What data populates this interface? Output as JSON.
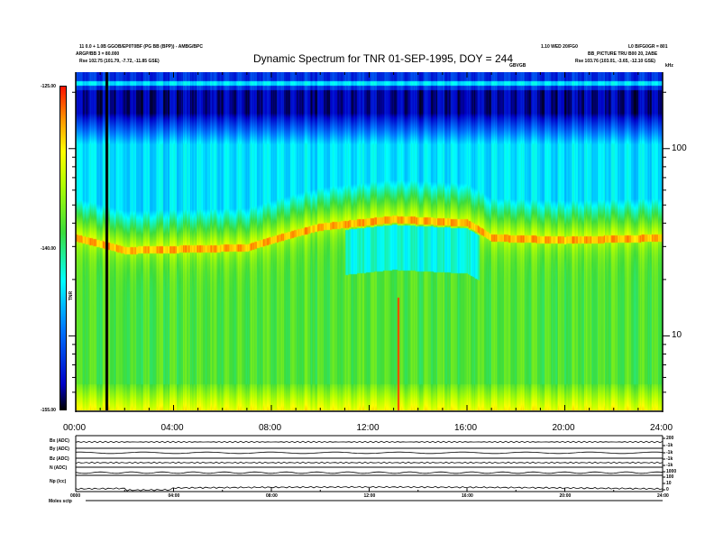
{
  "header": {
    "info_line1": "11 0.0 + 1.0B GGOB/EP0T0BF (PG BB (BPP)) - AMBG/BPC",
    "info_line2": "ARGP/BB 3 = 80.000",
    "pos_left": "Rse    102.75 (101.79, -7.72, -11.85 GSE)",
    "info_right1": "1.10 WED 20/FG0",
    "info_right2": "L0 B/FG0GR = 801",
    "info_right3": "BB_PICTURE  TRU B00 20, 2ABE",
    "pos_right": "Rse    103.76 (103.01, -3.65, -12.10 GSE)",
    "marker_label": "GBVGB",
    "unit_label": "kHz"
  },
  "chart_data": {
    "type": "heatmap",
    "title": "Dynamic Spectrum for TNR 01-SEP-1995, DOY = 244",
    "xlabel": "",
    "ylabel": "kHz",
    "x_ticks": [
      "00:00",
      "04:00",
      "08:00",
      "12:00",
      "16:00",
      "20:00",
      "24:00"
    ],
    "xlim_hours": [
      0,
      24
    ],
    "y_scale": "log",
    "ylim_khz": [
      4,
      256
    ],
    "y_ticks": [
      "100",
      "10"
    ],
    "colorbar": {
      "label": "TNR",
      "ticks": [
        "-125.00",
        "-140.00",
        "-155.00"
      ],
      "range": [
        -155,
        -125
      ]
    },
    "plasma_line_khz": [
      {
        "hour": 0,
        "khz": 35
      },
      {
        "hour": 2,
        "khz": 30
      },
      {
        "hour": 7,
        "khz": 31
      },
      {
        "hour": 10,
        "khz": 40
      },
      {
        "hour": 13,
        "khz": 44
      },
      {
        "hour": 16,
        "khz": 42
      },
      {
        "hour": 17,
        "khz": 35
      },
      {
        "hour": 20,
        "khz": 34
      },
      {
        "hour": 24,
        "khz": 35
      }
    ],
    "vertical_marker_hour": 1.2
  },
  "panels": {
    "labels": [
      "Bx (ADC)",
      "By (ADC)",
      "Bz (ADC)",
      "N (ADC)",
      "Np (/cc)"
    ],
    "right_ticks": [
      "200",
      "-1k",
      "-1k",
      "-1k",
      "-1k",
      "1000",
      "100",
      "10",
      "0"
    ],
    "x_ticks": [
      "0000",
      "04:00",
      "08:00",
      "12:00",
      "16:00",
      "20:00",
      "24:00"
    ],
    "footer": "Moles  sctp"
  }
}
